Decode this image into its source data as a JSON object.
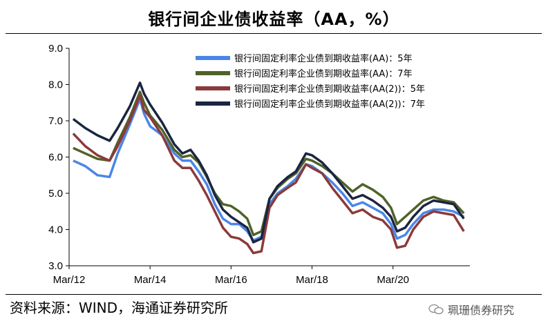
{
  "header": {
    "title": "银行间企业债收益率（AA，%）"
  },
  "footer": {
    "source": "资料来源：WIND，海通证券研究所",
    "watermark": "珮珊债券研究"
  },
  "chart_data": {
    "type": "line",
    "title": "银行间企业债收益率（AA，%）",
    "xlabel": "",
    "ylabel": "",
    "ylim": [
      3.0,
      9.0
    ],
    "yticks": [
      "3.0",
      "4.0",
      "5.0",
      "6.0",
      "7.0",
      "8.0",
      "9.0"
    ],
    "xlim": [
      2012.0,
      2021.9
    ],
    "xticks": [
      {
        "label": "Mar/12",
        "value": 2012.0
      },
      {
        "label": "Mar/14",
        "value": 2014.0
      },
      {
        "label": "Mar/16",
        "value": 2016.0
      },
      {
        "label": "Mar/18",
        "value": 2018.0
      },
      {
        "label": "Mar/20",
        "value": 2020.0
      }
    ],
    "legend_position": "top-right",
    "series": [
      {
        "name": "银行间固定利率企业债到期收益率(AA)：5年",
        "color": "#4a86e8",
        "points": [
          [
            2012.1,
            5.9
          ],
          [
            2012.4,
            5.75
          ],
          [
            2012.7,
            5.5
          ],
          [
            2013.0,
            5.45
          ],
          [
            2013.2,
            6.1
          ],
          [
            2013.5,
            6.9
          ],
          [
            2013.75,
            7.6
          ],
          [
            2013.85,
            7.2
          ],
          [
            2014.0,
            6.85
          ],
          [
            2014.3,
            6.6
          ],
          [
            2014.6,
            6.1
          ],
          [
            2014.8,
            5.9
          ],
          [
            2015.0,
            5.9
          ],
          [
            2015.2,
            5.6
          ],
          [
            2015.4,
            5.25
          ],
          [
            2015.6,
            4.7
          ],
          [
            2015.8,
            4.3
          ],
          [
            2016.0,
            4.15
          ],
          [
            2016.2,
            4.15
          ],
          [
            2016.4,
            3.95
          ],
          [
            2016.55,
            3.7
          ],
          [
            2016.75,
            3.8
          ],
          [
            2016.95,
            4.7
          ],
          [
            2017.15,
            5.0
          ],
          [
            2017.4,
            5.2
          ],
          [
            2017.6,
            5.4
          ],
          [
            2017.85,
            5.8
          ],
          [
            2018.0,
            5.75
          ],
          [
            2018.25,
            5.55
          ],
          [
            2018.5,
            5.3
          ],
          [
            2018.75,
            5.0
          ],
          [
            2019.0,
            4.65
          ],
          [
            2019.25,
            4.75
          ],
          [
            2019.5,
            4.6
          ],
          [
            2019.75,
            4.45
          ],
          [
            2019.95,
            4.15
          ],
          [
            2020.1,
            3.75
          ],
          [
            2020.3,
            3.85
          ],
          [
            2020.5,
            4.15
          ],
          [
            2020.75,
            4.45
          ],
          [
            2021.0,
            4.55
          ],
          [
            2021.25,
            4.55
          ],
          [
            2021.5,
            4.5
          ],
          [
            2021.75,
            4.35
          ]
        ]
      },
      {
        "name": "银行间固定利率企业债到期收益率(AA)：7年",
        "color": "#4f6228",
        "points": [
          [
            2012.1,
            6.25
          ],
          [
            2012.4,
            6.1
          ],
          [
            2012.7,
            5.95
          ],
          [
            2013.0,
            5.9
          ],
          [
            2013.2,
            6.4
          ],
          [
            2013.5,
            7.1
          ],
          [
            2013.75,
            7.8
          ],
          [
            2013.85,
            7.5
          ],
          [
            2014.0,
            7.15
          ],
          [
            2014.3,
            6.75
          ],
          [
            2014.6,
            6.2
          ],
          [
            2014.8,
            6.0
          ],
          [
            2015.0,
            6.05
          ],
          [
            2015.2,
            5.85
          ],
          [
            2015.4,
            5.45
          ],
          [
            2015.6,
            5.0
          ],
          [
            2015.8,
            4.7
          ],
          [
            2016.0,
            4.65
          ],
          [
            2016.2,
            4.5
          ],
          [
            2016.4,
            4.3
          ],
          [
            2016.55,
            3.85
          ],
          [
            2016.75,
            3.95
          ],
          [
            2016.95,
            4.85
          ],
          [
            2017.15,
            5.15
          ],
          [
            2017.4,
            5.4
          ],
          [
            2017.6,
            5.55
          ],
          [
            2017.85,
            5.95
          ],
          [
            2018.0,
            5.9
          ],
          [
            2018.25,
            5.75
          ],
          [
            2018.5,
            5.55
          ],
          [
            2018.75,
            5.3
          ],
          [
            2019.0,
            5.05
          ],
          [
            2019.25,
            5.25
          ],
          [
            2019.5,
            5.1
          ],
          [
            2019.75,
            4.9
          ],
          [
            2019.95,
            4.6
          ],
          [
            2020.1,
            4.15
          ],
          [
            2020.3,
            4.35
          ],
          [
            2020.5,
            4.55
          ],
          [
            2020.75,
            4.8
          ],
          [
            2021.0,
            4.9
          ],
          [
            2021.25,
            4.8
          ],
          [
            2021.5,
            4.75
          ],
          [
            2021.75,
            4.45
          ]
        ]
      },
      {
        "name": "银行间固定利率企业债到期收益率(AA(2))：5年",
        "color": "#8b3a3a",
        "points": [
          [
            2012.1,
            6.65
          ],
          [
            2012.4,
            6.3
          ],
          [
            2012.7,
            6.05
          ],
          [
            2013.0,
            5.9
          ],
          [
            2013.2,
            6.3
          ],
          [
            2013.5,
            7.0
          ],
          [
            2013.75,
            7.7
          ],
          [
            2013.85,
            7.3
          ],
          [
            2014.0,
            7.1
          ],
          [
            2014.3,
            6.6
          ],
          [
            2014.6,
            5.9
          ],
          [
            2014.8,
            5.7
          ],
          [
            2015.0,
            5.7
          ],
          [
            2015.2,
            5.35
          ],
          [
            2015.4,
            4.95
          ],
          [
            2015.6,
            4.5
          ],
          [
            2015.8,
            4.05
          ],
          [
            2016.0,
            3.8
          ],
          [
            2016.2,
            3.75
          ],
          [
            2016.4,
            3.6
          ],
          [
            2016.55,
            3.35
          ],
          [
            2016.75,
            3.4
          ],
          [
            2016.95,
            4.6
          ],
          [
            2017.15,
            4.95
          ],
          [
            2017.4,
            5.15
          ],
          [
            2017.6,
            5.3
          ],
          [
            2017.85,
            5.8
          ],
          [
            2018.0,
            5.7
          ],
          [
            2018.25,
            5.55
          ],
          [
            2018.5,
            5.15
          ],
          [
            2018.75,
            4.8
          ],
          [
            2019.0,
            4.45
          ],
          [
            2019.25,
            4.55
          ],
          [
            2019.5,
            4.35
          ],
          [
            2019.75,
            4.25
          ],
          [
            2019.95,
            4.0
          ],
          [
            2020.1,
            3.5
          ],
          [
            2020.3,
            3.55
          ],
          [
            2020.5,
            4.0
          ],
          [
            2020.75,
            4.35
          ],
          [
            2021.0,
            4.5
          ],
          [
            2021.25,
            4.45
          ],
          [
            2021.5,
            4.4
          ],
          [
            2021.75,
            3.95
          ]
        ]
      },
      {
        "name": "银行间固定利率企业债到期收益率(AA(2))：7年",
        "color": "#1a2540",
        "points": [
          [
            2012.1,
            7.05
          ],
          [
            2012.4,
            6.8
          ],
          [
            2012.7,
            6.6
          ],
          [
            2013.0,
            6.45
          ],
          [
            2013.2,
            6.8
          ],
          [
            2013.5,
            7.4
          ],
          [
            2013.75,
            8.05
          ],
          [
            2013.85,
            7.75
          ],
          [
            2014.0,
            7.45
          ],
          [
            2014.3,
            6.95
          ],
          [
            2014.6,
            6.35
          ],
          [
            2014.8,
            6.1
          ],
          [
            2015.0,
            6.2
          ],
          [
            2015.2,
            5.9
          ],
          [
            2015.4,
            5.5
          ],
          [
            2015.6,
            4.95
          ],
          [
            2015.8,
            4.55
          ],
          [
            2016.0,
            4.35
          ],
          [
            2016.2,
            4.2
          ],
          [
            2016.4,
            4.05
          ],
          [
            2016.55,
            3.65
          ],
          [
            2016.75,
            3.75
          ],
          [
            2016.95,
            4.85
          ],
          [
            2017.15,
            5.2
          ],
          [
            2017.4,
            5.45
          ],
          [
            2017.6,
            5.6
          ],
          [
            2017.85,
            6.1
          ],
          [
            2018.0,
            6.05
          ],
          [
            2018.25,
            5.85
          ],
          [
            2018.5,
            5.55
          ],
          [
            2018.75,
            5.2
          ],
          [
            2019.0,
            4.85
          ],
          [
            2019.25,
            4.95
          ],
          [
            2019.5,
            4.8
          ],
          [
            2019.75,
            4.6
          ],
          [
            2019.95,
            4.35
          ],
          [
            2020.1,
            3.95
          ],
          [
            2020.3,
            4.05
          ],
          [
            2020.5,
            4.35
          ],
          [
            2020.75,
            4.65
          ],
          [
            2021.0,
            4.8
          ],
          [
            2021.25,
            4.75
          ],
          [
            2021.5,
            4.7
          ],
          [
            2021.75,
            4.3
          ]
        ]
      }
    ]
  }
}
